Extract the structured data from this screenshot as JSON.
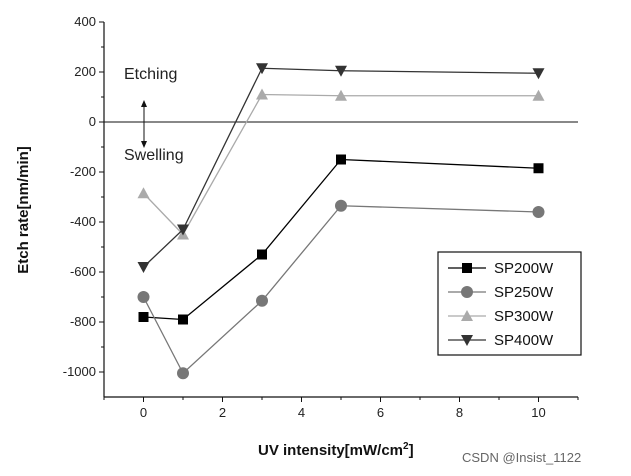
{
  "chart_data": {
    "type": "line",
    "title": "",
    "xlabel": "UV intensity[mW/cm",
    "xlabel_sup": "2",
    "xlabel_end": "]",
    "ylabel": "Etch rate[nm/min]",
    "xlim": [
      -1,
      11
    ],
    "ylim": [
      -1100,
      400
    ],
    "xticks": [
      0,
      2,
      4,
      6,
      8,
      10
    ],
    "yticks": [
      400,
      200,
      0,
      -200,
      -400,
      -600,
      -800,
      -1000
    ],
    "reference_line": 0,
    "annotations": {
      "etching": "Etching",
      "swelling": "Swelling"
    },
    "legend_position": "lower-right",
    "series": [
      {
        "name": "SP200W",
        "marker": "square",
        "color": "#000000",
        "x": [
          0,
          1,
          3,
          5,
          10
        ],
        "values": [
          -780,
          -790,
          -530,
          -150,
          -185
        ]
      },
      {
        "name": "SP250W",
        "marker": "circle",
        "color": "#777777",
        "x": [
          0,
          1,
          3,
          5,
          10
        ],
        "values": [
          -700,
          -1005,
          -715,
          -335,
          -360
        ]
      },
      {
        "name": "SP300W",
        "marker": "triangle-up",
        "color": "#aaaaaa",
        "x": [
          0,
          1,
          3,
          5,
          10
        ],
        "values": [
          -285,
          -450,
          110,
          105,
          105
        ]
      },
      {
        "name": "SP400W",
        "marker": "triangle-down",
        "color": "#333333",
        "x": [
          0,
          1,
          3,
          5,
          10
        ],
        "values": [
          -580,
          -430,
          215,
          205,
          195
        ]
      }
    ]
  },
  "watermark": "CSDN @Insist_1122"
}
